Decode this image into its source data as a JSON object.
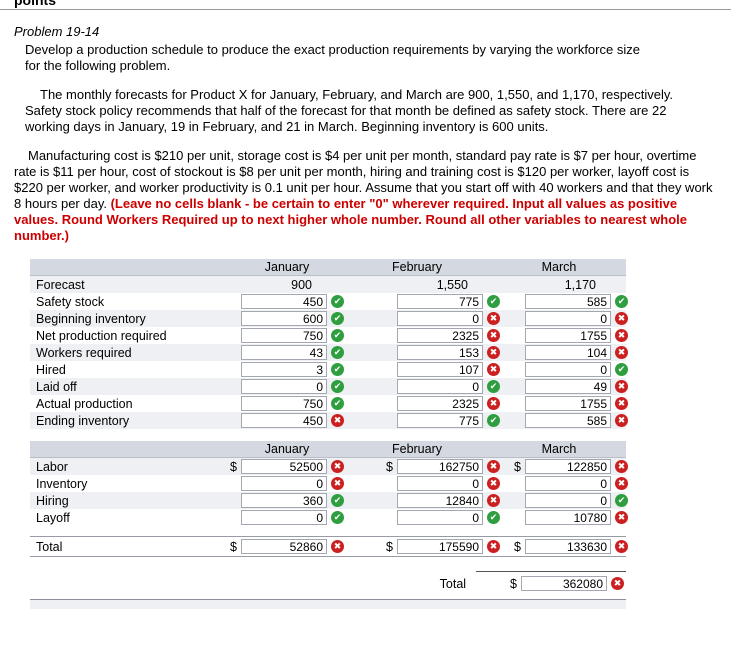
{
  "currency": "$",
  "page": {
    "top_cut_text": "points",
    "problem_title": "Problem 19-14",
    "intro": "Develop a production schedule to produce the exact production requirements by varying the workforce size for the following problem.",
    "para2": "The monthly forecasts for Product X for January, February, and March are 900, 1,550, and 1,170, respectively. Safety stock policy recommends that half of the forecast for that month be defined as safety stock. There are 22 working days in January, 19 in February, and 21 in March. Beginning inventory is 600 units.",
    "para3_normal": "Manufacturing cost is $210 per unit, storage cost is $4 per unit per month, standard pay rate is $7 per hour, overtime rate is $11 per hour, cost of stockout is $8 per unit per month, hiring and training cost is $120 per worker, layoff cost is $220 per worker, and worker productivity is 0.1 unit per hour. Assume that you start off with 40 workers and that they work 8 hours per day. ",
    "para3_red": "(Leave no cells blank - be certain to enter \"0\" wherever required. Input all values as positive values. Round Workers Required up to next higher whole number. Round all other variables to nearest whole number.)"
  },
  "months": [
    "January",
    "February",
    "March"
  ],
  "icons": {
    "correct": "check-circle-icon",
    "wrong": "x-circle-icon"
  },
  "colors": {
    "correct_green": "#2f9e3e",
    "wrong_red": "#cc2020",
    "instruction_red": "#cc0000",
    "table_header_bg": "#d4d8e0",
    "row_stripe": "#eef0f3"
  },
  "table1": {
    "forecast_label": "Forecast",
    "forecast_values": [
      "900",
      "1,550",
      "1,170"
    ],
    "rows": [
      {
        "label": "Safety stock",
        "cells": [
          {
            "value": "450",
            "status": "correct"
          },
          {
            "value": "775",
            "status": "correct"
          },
          {
            "value": "585",
            "status": "correct"
          }
        ]
      },
      {
        "label": "Beginning inventory",
        "cells": [
          {
            "value": "600",
            "status": "correct"
          },
          {
            "value": "0",
            "status": "wrong"
          },
          {
            "value": "0",
            "status": "wrong"
          }
        ]
      },
      {
        "label": "Net production required",
        "cells": [
          {
            "value": "750",
            "status": "correct"
          },
          {
            "value": "2325",
            "status": "wrong"
          },
          {
            "value": "1755",
            "status": "wrong"
          }
        ]
      },
      {
        "label": "Workers required",
        "cells": [
          {
            "value": "43",
            "status": "correct"
          },
          {
            "value": "153",
            "status": "wrong"
          },
          {
            "value": "104",
            "status": "wrong"
          }
        ]
      },
      {
        "label": "Hired",
        "cells": [
          {
            "value": "3",
            "status": "correct"
          },
          {
            "value": "107",
            "status": "wrong"
          },
          {
            "value": "0",
            "status": "correct"
          }
        ]
      },
      {
        "label": "Laid off",
        "cells": [
          {
            "value": "0",
            "status": "correct"
          },
          {
            "value": "0",
            "status": "correct"
          },
          {
            "value": "49",
            "status": "wrong"
          }
        ]
      },
      {
        "label": "Actual production",
        "cells": [
          {
            "value": "750",
            "status": "correct"
          },
          {
            "value": "2325",
            "status": "wrong"
          },
          {
            "value": "1755",
            "status": "wrong"
          }
        ]
      },
      {
        "label": "Ending inventory",
        "cells": [
          {
            "value": "450",
            "status": "wrong"
          },
          {
            "value": "775",
            "status": "correct"
          },
          {
            "value": "585",
            "status": "wrong"
          }
        ]
      }
    ]
  },
  "table2": {
    "rows": [
      {
        "label": "Labor",
        "dollar": true,
        "cells": [
          {
            "value": "52500",
            "status": "wrong"
          },
          {
            "value": "162750",
            "status": "wrong"
          },
          {
            "value": "122850",
            "status": "wrong"
          }
        ]
      },
      {
        "label": "Inventory",
        "dollar": false,
        "cells": [
          {
            "value": "0",
            "status": "wrong"
          },
          {
            "value": "0",
            "status": "wrong"
          },
          {
            "value": "0",
            "status": "wrong"
          }
        ]
      },
      {
        "label": "Hiring",
        "dollar": false,
        "cells": [
          {
            "value": "360",
            "status": "correct"
          },
          {
            "value": "12840",
            "status": "wrong"
          },
          {
            "value": "0",
            "status": "correct"
          }
        ]
      },
      {
        "label": "Layoff",
        "dollar": false,
        "cells": [
          {
            "value": "0",
            "status": "correct"
          },
          {
            "value": "0",
            "status": "correct"
          },
          {
            "value": "10780",
            "status": "wrong"
          }
        ]
      }
    ],
    "total_row": {
      "label": "Total",
      "dollar": true,
      "cells": [
        {
          "value": "52860",
          "status": "wrong"
        },
        {
          "value": "175590",
          "status": "wrong"
        },
        {
          "value": "133630",
          "status": "wrong"
        }
      ]
    },
    "grand_total": {
      "label": "Total",
      "value": "362080",
      "status": "wrong"
    }
  }
}
